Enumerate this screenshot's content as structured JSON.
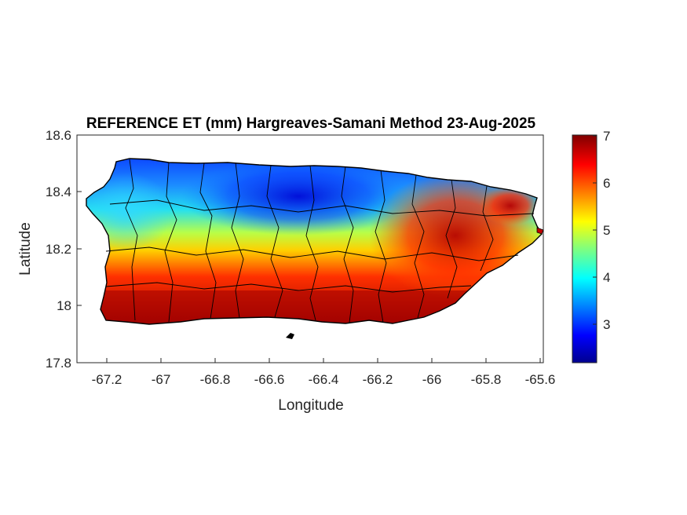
{
  "figure": {
    "title": "REFERENCE ET (mm) Hargreaves-Samani Method  23-Aug-2025"
  },
  "chart_data": {
    "type": "heatmap",
    "title": "REFERENCE ET (mm) Hargreaves-Samani Method  23-Aug-2025",
    "xlabel": "Longitude",
    "ylabel": "Latitude",
    "xlim": [
      -67.3,
      -65.58
    ],
    "ylim": [
      17.8,
      18.6
    ],
    "x_ticks": [
      "-67.2",
      "-67",
      "-66.8",
      "-66.6",
      "-66.4",
      "-66.2",
      "-66",
      "-65.8",
      "-65.6"
    ],
    "x_tick_values": [
      -67.2,
      -67.0,
      -66.8,
      -66.6,
      -66.4,
      -66.2,
      -66.0,
      -65.8,
      -65.6
    ],
    "y_ticks": [
      "18.6",
      "18.4",
      "18.2",
      "18",
      "17.8"
    ],
    "y_tick_values": [
      18.6,
      18.4,
      18.2,
      18.0,
      17.8
    ],
    "colorbar": {
      "colormap": "jet",
      "range": [
        2.2,
        7.0
      ],
      "ticks": [
        "7",
        "6",
        "5",
        "4",
        "3"
      ],
      "tick_values": [
        7,
        6,
        5,
        4,
        3
      ]
    },
    "grid": false,
    "regions": [
      {
        "area": "north coast, central (-66.8 to -66.3)",
        "value": 2.5
      },
      {
        "area": "north coast, west (-67.1 to -66.9)",
        "value": 3.6
      },
      {
        "area": "north coast, east (-66.2 to -66.0)",
        "value": 4.0
      },
      {
        "area": "west interior",
        "value": 4.8
      },
      {
        "area": "central interior",
        "value": 4.3
      },
      {
        "area": "east interior (-66.0 to -65.8)",
        "value": 6.7
      },
      {
        "area": "south coast",
        "value": 6.9
      },
      {
        "area": "far east coast",
        "value": 6.5
      }
    ]
  }
}
